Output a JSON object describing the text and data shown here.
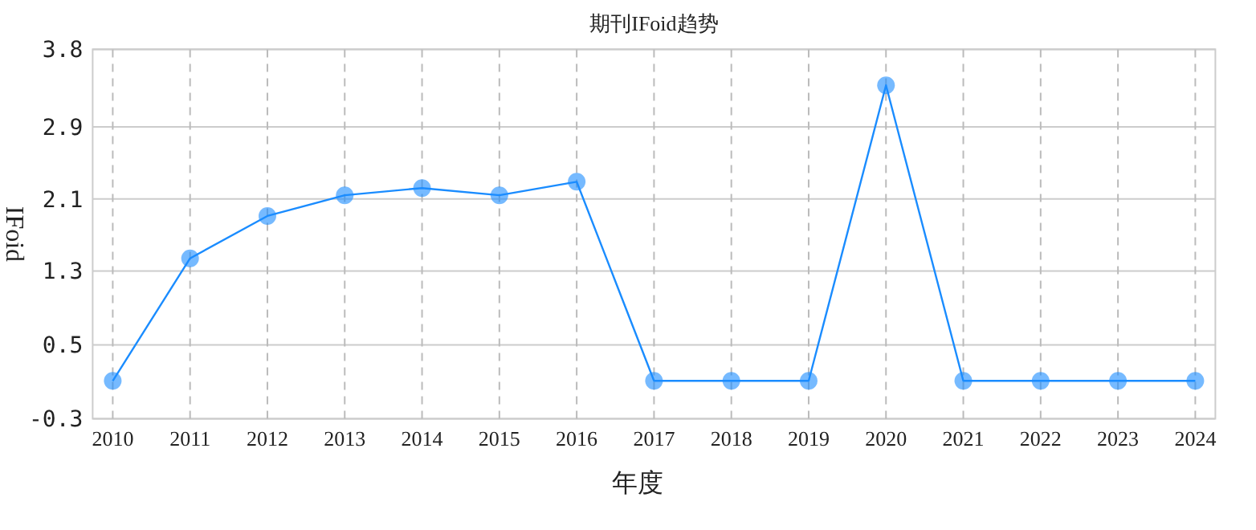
{
  "chart_data": {
    "type": "line",
    "title": "期刊IFoid趋势",
    "xlabel": "年度",
    "ylabel": "IFoid",
    "categories": [
      "2010",
      "2011",
      "2012",
      "2013",
      "2014",
      "2015",
      "2016",
      "2017",
      "2018",
      "2019",
      "2020",
      "2021",
      "2022",
      "2023",
      "2024"
    ],
    "series": [
      {
        "color": "#1a8cff",
        "values": [
          0.12,
          1.48,
          1.95,
          2.18,
          2.26,
          2.18,
          2.33,
          0.12,
          0.12,
          0.12,
          3.4,
          0.12,
          0.12,
          0.12,
          0.12
        ]
      }
    ],
    "ylim": [
      -0.3,
      3.8
    ],
    "yticks": [
      -0.3,
      {
        "value": 0.52,
        "label": "0.5"
      },
      {
        "value": 1.34,
        "label": "1.3"
      },
      {
        "value": 2.14,
        "label": "2.1"
      },
      {
        "value": 2.94,
        "label": "2.9"
      },
      3.8
    ],
    "grid": true,
    "marker": "circle"
  }
}
